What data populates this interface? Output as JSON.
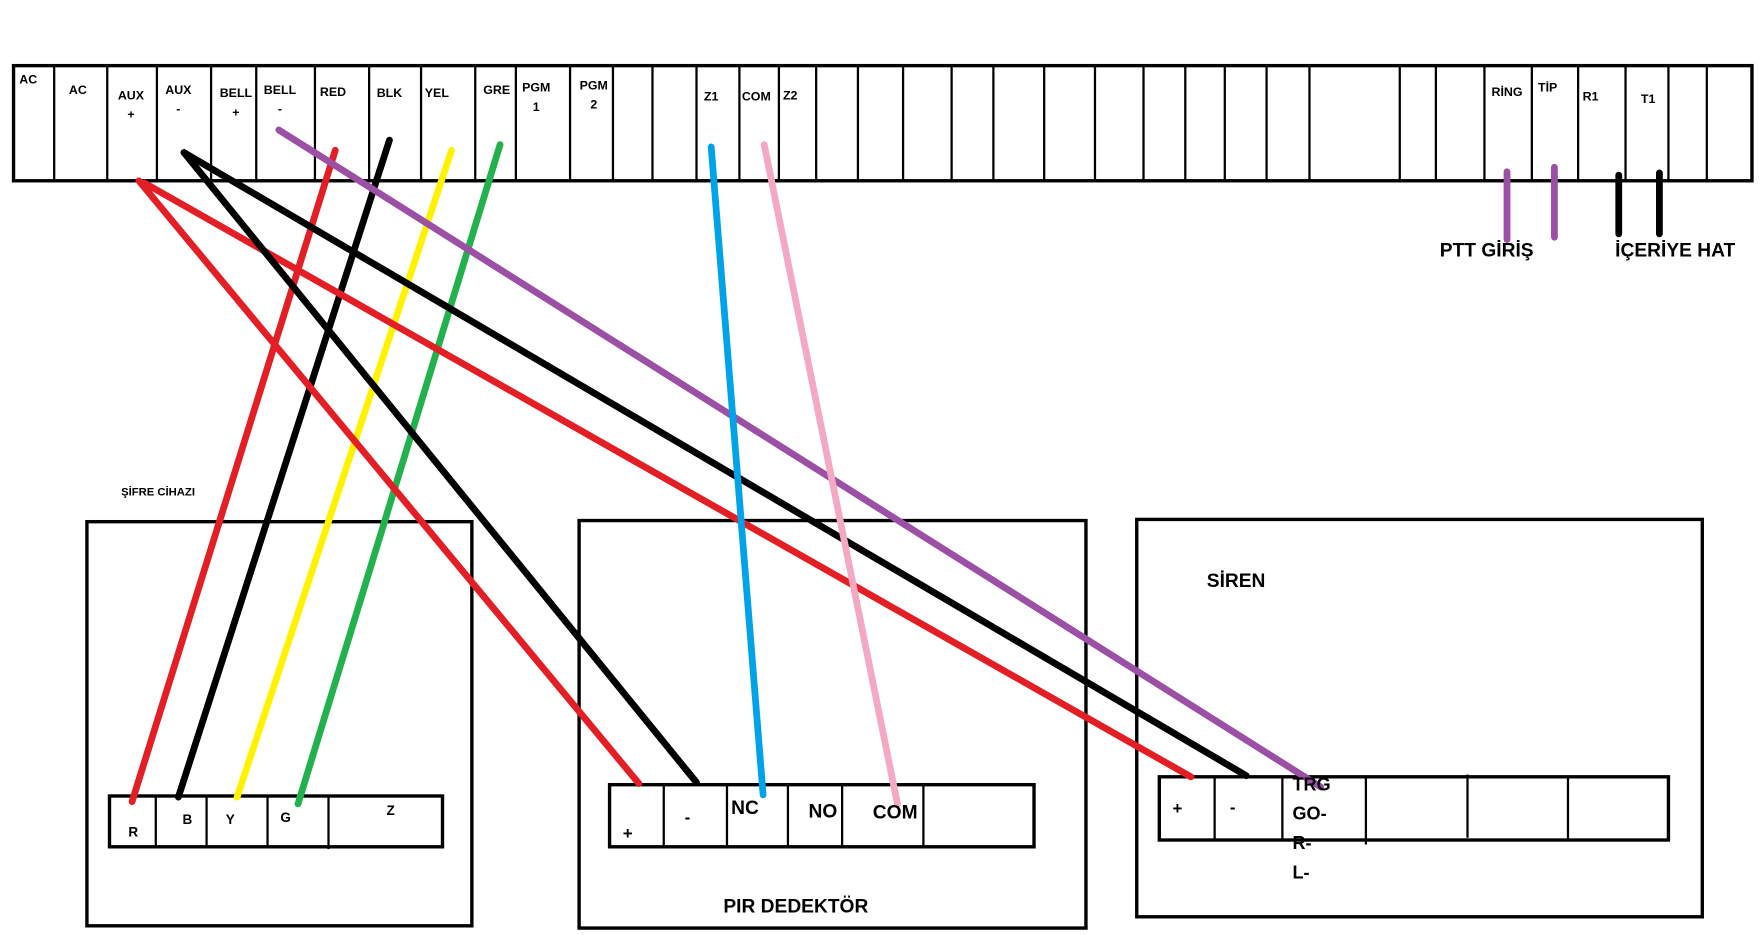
{
  "panel": {
    "terminals": [
      [
        "AC"
      ],
      [
        "AC"
      ],
      [
        "AUX",
        "+"
      ],
      [
        "AUX",
        "-"
      ],
      [
        "BELL",
        "+"
      ],
      [
        "BELL",
        "-"
      ],
      [
        "RED"
      ],
      [
        "BLK"
      ],
      [
        "YEL"
      ],
      [
        "GRE"
      ],
      [
        "PGM",
        "1"
      ],
      [
        "PGM",
        "2"
      ],
      [
        "Z1"
      ],
      [
        "COM"
      ],
      [
        "Z2"
      ],
      [
        "RİNG"
      ],
      [
        "TİP"
      ],
      [
        "R1"
      ],
      [
        "T1"
      ]
    ],
    "ptt_label": "PTT GİRİŞ",
    "line_label": "İÇERİYE HAT"
  },
  "keypad": {
    "title": "ŞİFRE CİHAZI",
    "terminals": [
      "R",
      "B",
      "Y",
      "G",
      "Z"
    ]
  },
  "pir": {
    "title": "PIR DEDEKTÖR",
    "terminals": [
      "+",
      "-",
      "NC",
      "NO",
      "COM"
    ]
  },
  "siren": {
    "title": "SİREN",
    "terminals": [
      [
        "+"
      ],
      [
        "-"
      ],
      [
        "TRG",
        "GO-",
        "R-",
        "L-"
      ]
    ]
  }
}
